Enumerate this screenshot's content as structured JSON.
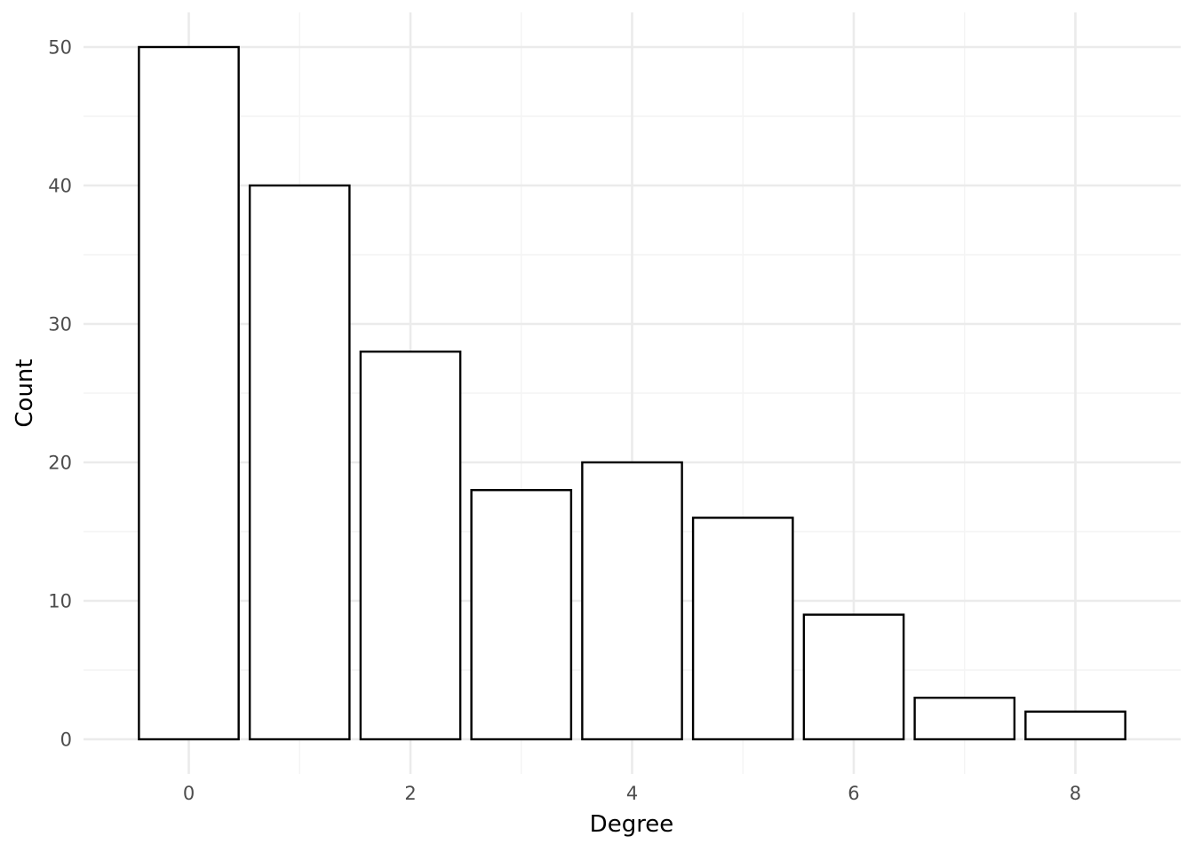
{
  "chart_data": {
    "type": "bar",
    "title": "",
    "xlabel": "Degree",
    "ylabel": "Count",
    "x": [
      0,
      1,
      2,
      3,
      4,
      5,
      6,
      7,
      8
    ],
    "values": [
      50,
      40,
      28,
      18,
      20,
      16,
      9,
      3,
      2
    ],
    "xlim": [
      -0.95,
      8.95
    ],
    "ylim": [
      -2.5,
      52.5
    ],
    "x_ticks": [
      0,
      2,
      4,
      6,
      8
    ],
    "y_ticks": [
      0,
      10,
      20,
      30,
      40,
      50
    ],
    "x_tick_labels": [
      "0",
      "2",
      "4",
      "6",
      "8"
    ],
    "y_tick_labels": [
      "0",
      "10",
      "20",
      "30",
      "40",
      "50"
    ],
    "grid": true,
    "legend": "none",
    "colors": {
      "bar_fill": "#ffffff",
      "bar_stroke": "#000000",
      "grid_major": "#ebebeb",
      "grid_minor": "#f4f4f4",
      "tick_text": "#4d4d4d"
    }
  }
}
